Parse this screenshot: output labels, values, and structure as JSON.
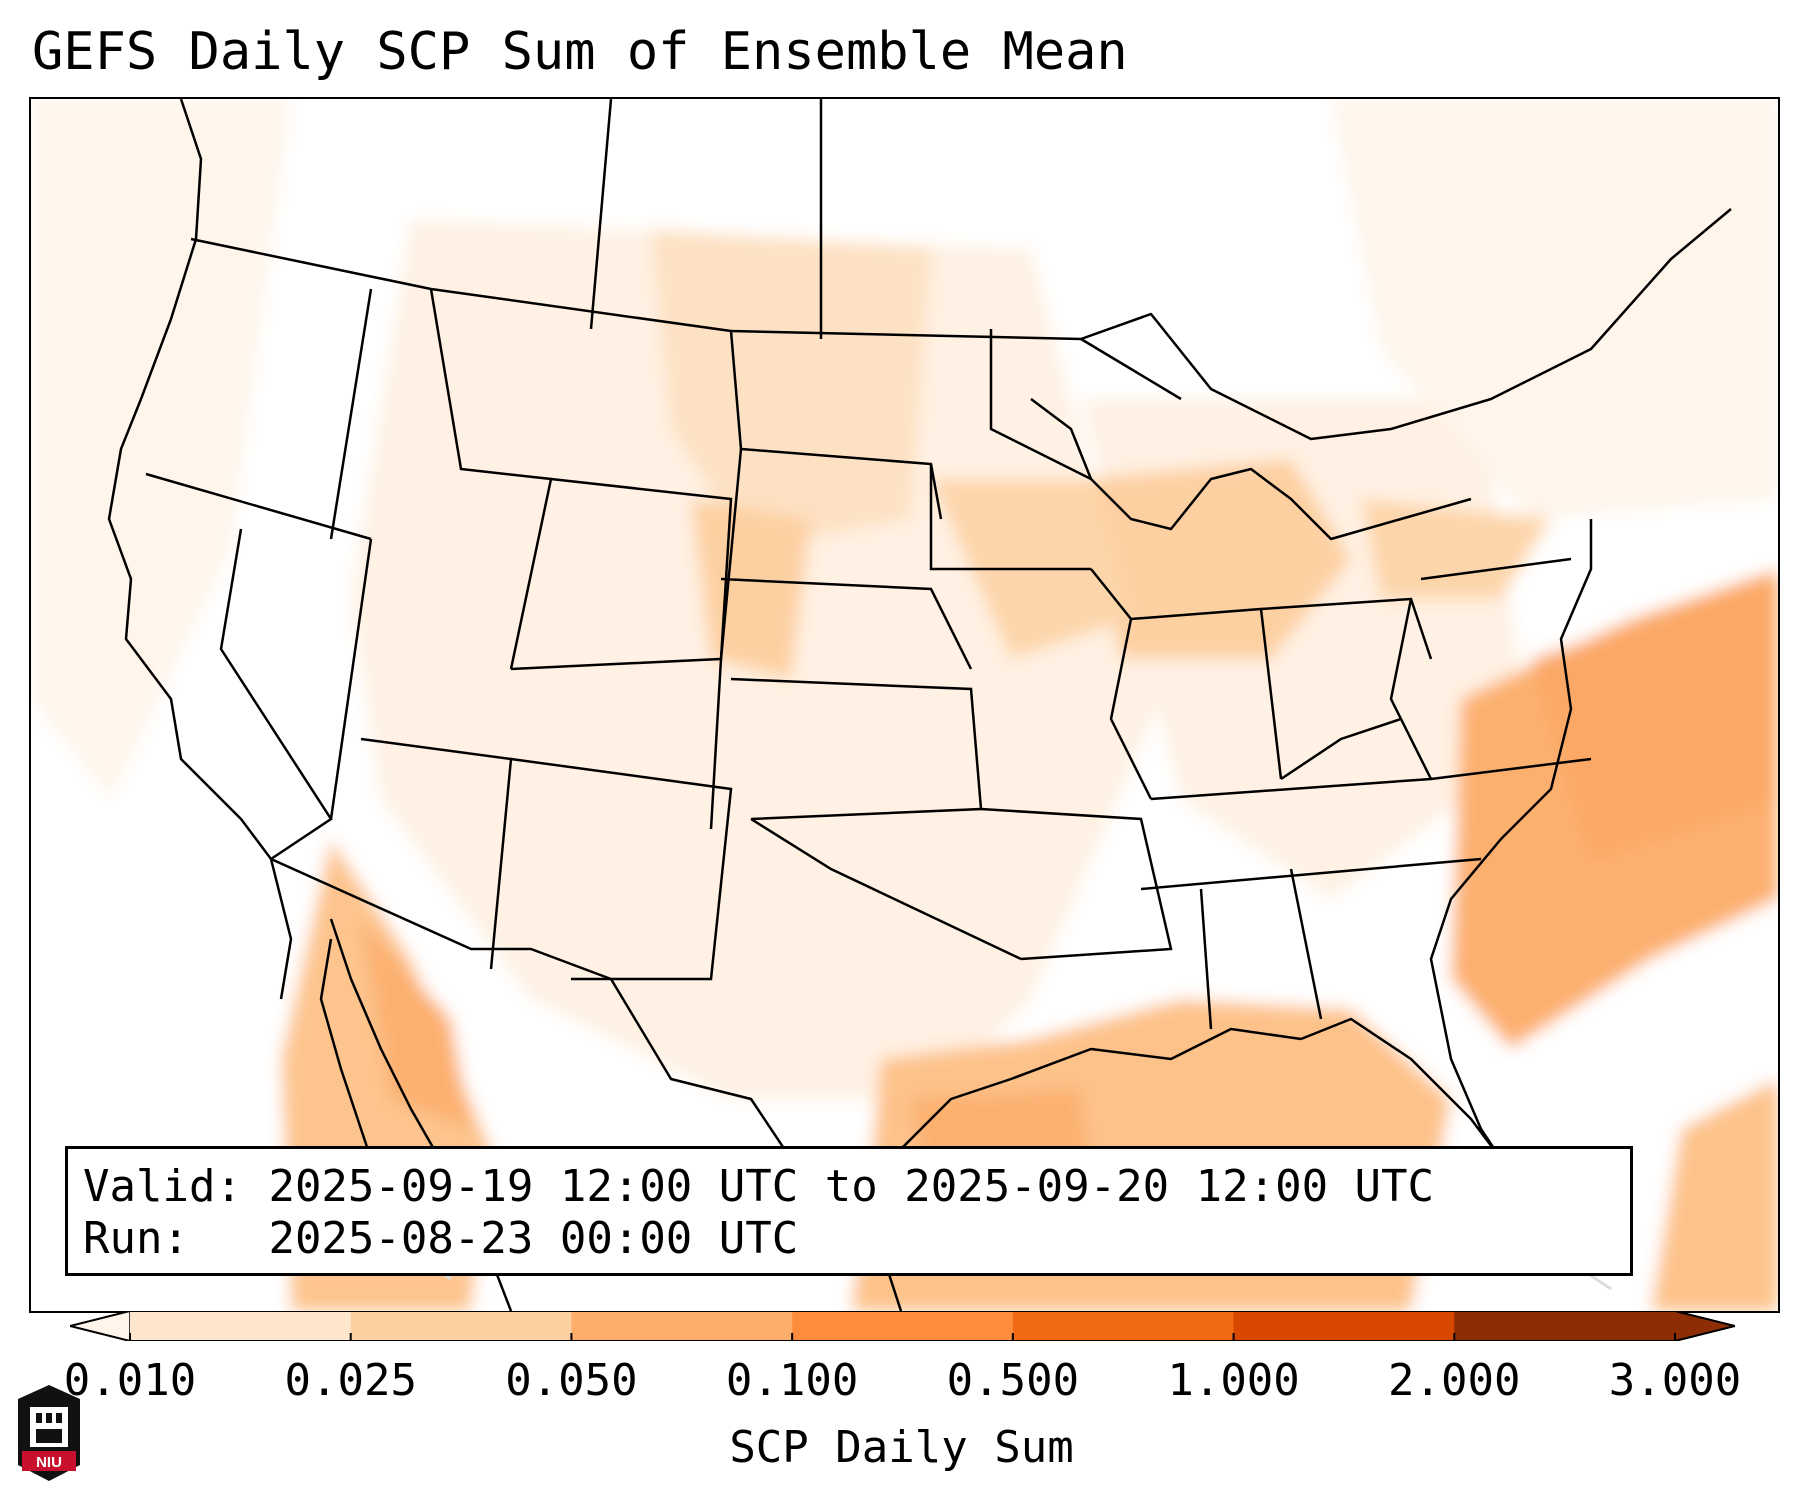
{
  "title": "GEFS Daily SCP Sum of Ensemble Mean",
  "info": {
    "valid_label": "Valid:",
    "valid_value": "2025-09-19 12:00 UTC to 2025-09-20 12:00 UTC",
    "run_label": "Run:",
    "run_value": "2025-08-23 00:00 UTC"
  },
  "colorbar": {
    "label": "SCP Daily Sum",
    "ticks": [
      "0.010",
      "0.025",
      "0.050",
      "0.100",
      "0.500",
      "1.000",
      "2.000",
      "3.000"
    ],
    "colors": [
      "#fff5eb",
      "#fee6ce",
      "#fdd0a2",
      "#fdae6b",
      "#fd8d3c",
      "#f16913",
      "#d94801",
      "#8c2d04"
    ],
    "extend": "both"
  },
  "logo": {
    "text": "NIU"
  }
}
